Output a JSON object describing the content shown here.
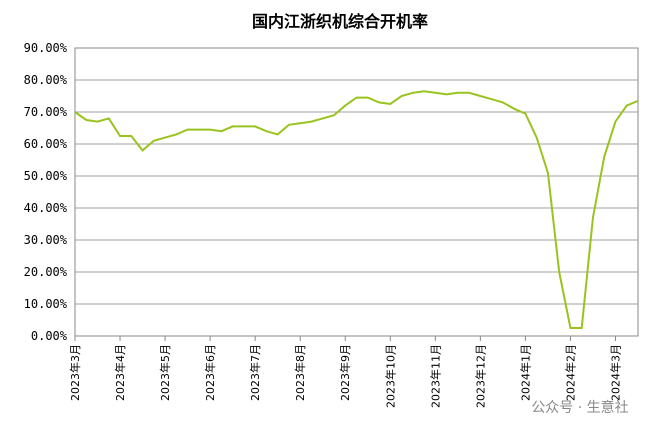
{
  "chart_data": {
    "type": "line",
    "title": "国内江浙织机综合开机率",
    "watermark": "公众号 · 生意社",
    "categories": [
      "2023年3月",
      null,
      null,
      null,
      "2023年4月",
      null,
      null,
      null,
      "2023年5月",
      null,
      null,
      null,
      "2023年6月",
      null,
      null,
      null,
      "2023年7月",
      null,
      null,
      null,
      "2023年8月",
      null,
      null,
      null,
      "2023年9月",
      null,
      null,
      null,
      "2023年10月",
      null,
      null,
      null,
      "2023年11月",
      null,
      null,
      null,
      "2023年12月",
      null,
      null,
      null,
      "2024年1月",
      null,
      null,
      null,
      "2024年2月",
      null,
      null,
      null,
      "2024年3月",
      null,
      null
    ],
    "series": [
      {
        "name": "开机率",
        "color": "#99c31f",
        "values": [
          70,
          67.5,
          67,
          68,
          62.5,
          62.5,
          58,
          61,
          62,
          63,
          64.5,
          64.5,
          64.5,
          64,
          65.5,
          65.5,
          65.5,
          64,
          63,
          66,
          66.5,
          67,
          68,
          69,
          72,
          74.5,
          74.5,
          73,
          72.5,
          75,
          76,
          76.5,
          76,
          75.5,
          76,
          76,
          75,
          74,
          73,
          71,
          69.5,
          62,
          51,
          20,
          2.5,
          2.5,
          37,
          56,
          67,
          72,
          73.5
        ]
      }
    ],
    "ylim": [
      0,
      90
    ],
    "yticks": [
      {
        "value": 0,
        "label": "0.00%"
      },
      {
        "value": 10,
        "label": "10.00%"
      },
      {
        "value": 20,
        "label": "20.00%"
      },
      {
        "value": 30,
        "label": "30.00%"
      },
      {
        "value": 40,
        "label": "40.00%"
      },
      {
        "value": 50,
        "label": "50.00%"
      },
      {
        "value": 60,
        "label": "60.00%"
      },
      {
        "value": 70,
        "label": "70.00%"
      },
      {
        "value": 80,
        "label": "80.00%"
      },
      {
        "value": 90,
        "label": "90.00%"
      }
    ],
    "grid": true
  }
}
